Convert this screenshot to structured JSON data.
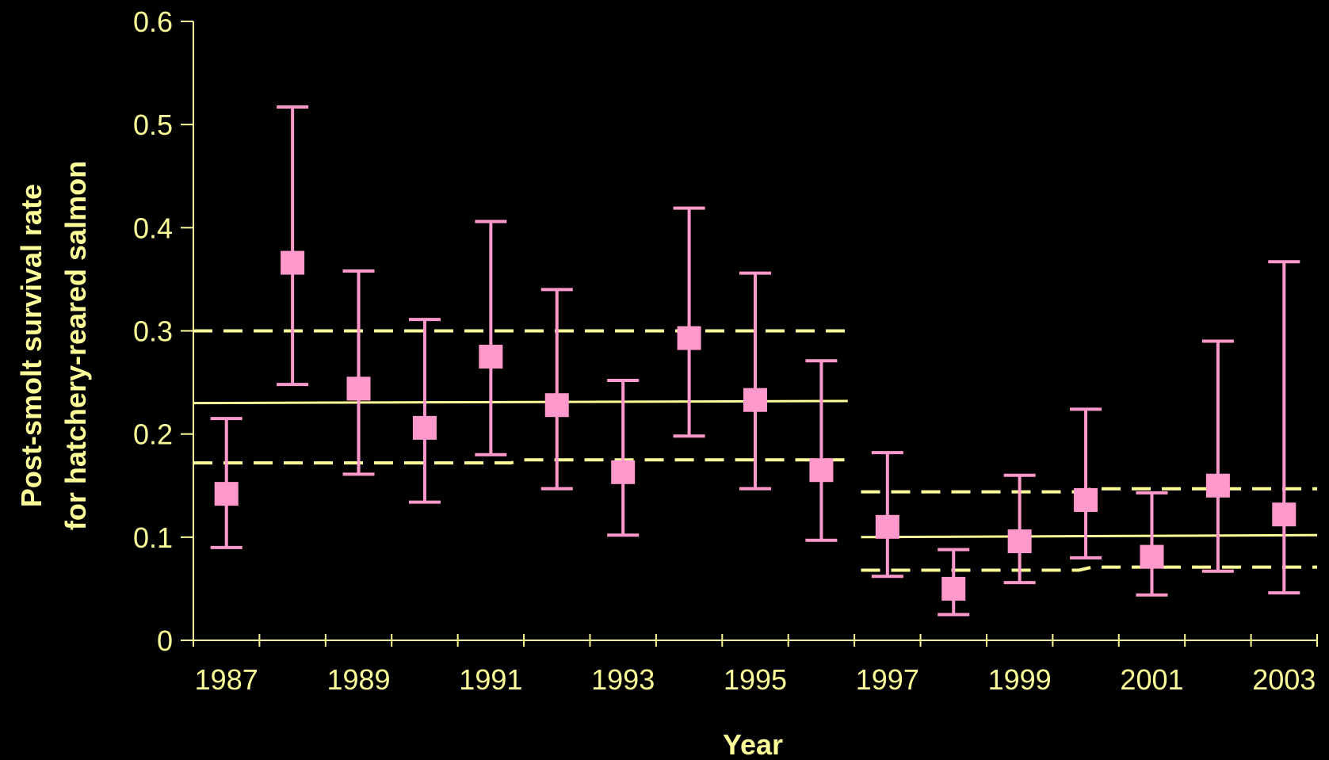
{
  "chart_data": {
    "type": "scatter",
    "xlabel": "Year",
    "ylabel_line1": "Post-smolt survival rate",
    "ylabel_line2": "for hatchery-reared salmon",
    "ylim": [
      0,
      0.6
    ],
    "yticks": [
      0,
      0.1,
      0.2,
      0.3,
      0.4,
      0.5,
      0.6
    ],
    "ytick_labels": [
      "0",
      "0.1",
      "0.2",
      "0.3",
      "0.4",
      "0.5",
      "0.6"
    ],
    "xlim": [
      1986.5,
      2003.5
    ],
    "xtick_labels": [
      "1987",
      "1989",
      "1991",
      "1993",
      "1995",
      "1997",
      "1999",
      "2001",
      "2003"
    ],
    "xtick_label_years": [
      1987,
      1989,
      1991,
      1993,
      1995,
      1997,
      1999,
      2001,
      2003
    ],
    "grid": false,
    "colors": {
      "background": "#000000",
      "axis": "#FFFF99",
      "points": "#FF99CC",
      "lines": "#FFFF99"
    },
    "points": [
      {
        "year": 1987,
        "value": 0.142,
        "lower": 0.09,
        "upper": 0.215
      },
      {
        "year": 1988,
        "value": 0.366,
        "lower": 0.248,
        "upper": 0.517
      },
      {
        "year": 1989,
        "value": 0.244,
        "lower": 0.161,
        "upper": 0.358
      },
      {
        "year": 1990,
        "value": 0.206,
        "lower": 0.134,
        "upper": 0.311
      },
      {
        "year": 1991,
        "value": 0.275,
        "lower": 0.18,
        "upper": 0.406
      },
      {
        "year": 1992,
        "value": 0.228,
        "lower": 0.147,
        "upper": 0.34
      },
      {
        "year": 1993,
        "value": 0.163,
        "lower": 0.102,
        "upper": 0.252
      },
      {
        "year": 1994,
        "value": 0.293,
        "lower": 0.198,
        "upper": 0.419
      },
      {
        "year": 1995,
        "value": 0.233,
        "lower": 0.147,
        "upper": 0.356
      },
      {
        "year": 1996,
        "value": 0.165,
        "lower": 0.097,
        "upper": 0.271
      },
      {
        "year": 1997,
        "value": 0.11,
        "lower": 0.062,
        "upper": 0.182
      },
      {
        "year": 1998,
        "value": 0.05,
        "lower": 0.025,
        "upper": 0.088
      },
      {
        "year": 1999,
        "value": 0.096,
        "lower": 0.056,
        "upper": 0.16
      },
      {
        "year": 2000,
        "value": 0.136,
        "lower": 0.08,
        "upper": 0.224
      },
      {
        "year": 2001,
        "value": 0.081,
        "lower": 0.044,
        "upper": 0.143
      },
      {
        "year": 2002,
        "value": 0.15,
        "lower": 0.067,
        "upper": 0.29
      },
      {
        "year": 2003,
        "value": 0.122,
        "lower": 0.046,
        "upper": 0.367
      }
    ],
    "period_lines": [
      {
        "mean": [
          [
            1986.5,
            0.23
          ],
          [
            1996.4,
            0.232
          ]
        ],
        "lower": [
          [
            1986.5,
            0.172
          ],
          [
            1991.3,
            0.172
          ],
          [
            1991.5,
            0.175
          ],
          [
            1996.4,
            0.175
          ]
        ],
        "upper": [
          [
            1986.5,
            0.3
          ],
          [
            1996.4,
            0.3
          ]
        ]
      },
      {
        "mean": [
          [
            1996.6,
            0.1
          ],
          [
            2003.5,
            0.102
          ]
        ],
        "lower": [
          [
            1996.6,
            0.068
          ],
          [
            1999.9,
            0.068
          ],
          [
            2000.1,
            0.071
          ],
          [
            2003.5,
            0.071
          ]
        ],
        "upper": [
          [
            1996.6,
            0.144
          ],
          [
            1999.9,
            0.144
          ],
          [
            2000.1,
            0.147
          ],
          [
            2003.5,
            0.147
          ]
        ]
      }
    ]
  }
}
